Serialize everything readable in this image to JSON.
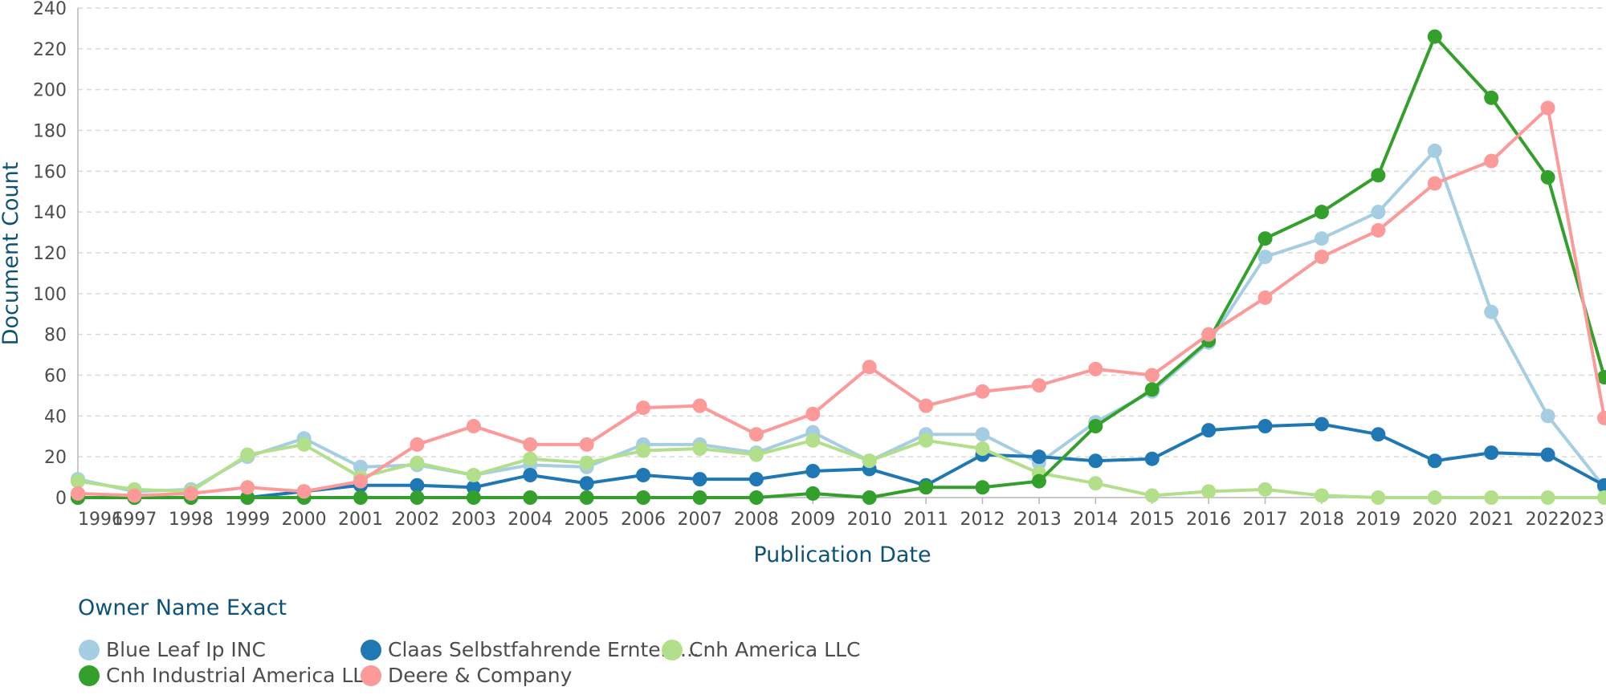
{
  "chart_data": {
    "type": "line",
    "xlabel": "Publication Date",
    "ylabel": "Document Count",
    "ylim": [
      0,
      240
    ],
    "yticks": [
      0,
      20,
      40,
      60,
      80,
      100,
      120,
      140,
      160,
      180,
      200,
      220,
      240
    ],
    "x": [
      "1996",
      "1997",
      "1998",
      "1999",
      "2000",
      "2001",
      "2002",
      "2003",
      "2004",
      "2005",
      "2006",
      "2007",
      "2008",
      "2009",
      "2010",
      "2011",
      "2012",
      "2013",
      "2014",
      "2015",
      "2016",
      "2017",
      "2018",
      "2019",
      "2020",
      "2021",
      "2022",
      "2023"
    ],
    "grid": "horizontal dashed",
    "legend": {
      "title": "Owner Name Exact",
      "placement": "bottom-left"
    },
    "series": [
      {
        "name": "Blue Leaf Ip INC",
        "color": "#a6cee3",
        "values": [
          9,
          3,
          4,
          20,
          29,
          15,
          16,
          11,
          16,
          15,
          26,
          26,
          22,
          32,
          18,
          31,
          31,
          17,
          37,
          52,
          76,
          118,
          127,
          140,
          170,
          91,
          40,
          5
        ]
      },
      {
        "name": "Claas Selbstfahrende Erntem...",
        "color": "#1f78b4",
        "values": [
          0,
          0,
          0,
          0,
          3,
          6,
          6,
          5,
          11,
          7,
          11,
          9,
          9,
          13,
          14,
          6,
          21,
          20,
          18,
          19,
          33,
          35,
          36,
          31,
          18,
          22,
          21,
          6
        ]
      },
      {
        "name": "Cnh America LLC",
        "color": "#b2df8a",
        "values": [
          8,
          4,
          3,
          21,
          26,
          10,
          17,
          11,
          19,
          17,
          23,
          24,
          21,
          28,
          18,
          28,
          24,
          12,
          7,
          1,
          3,
          4,
          1,
          0,
          0,
          0,
          0,
          0
        ]
      },
      {
        "name": "Cnh Industrial America LLC",
        "color": "#33a02c",
        "values": [
          0,
          0,
          0,
          0,
          0,
          0,
          0,
          0,
          0,
          0,
          0,
          0,
          0,
          2,
          0,
          5,
          5,
          8,
          35,
          53,
          77,
          127,
          140,
          158,
          226,
          196,
          157,
          59
        ]
      },
      {
        "name": "Deere & Company",
        "color": "#fb9a99",
        "values": [
          2,
          1,
          2,
          5,
          3,
          8,
          26,
          35,
          26,
          26,
          44,
          45,
          31,
          41,
          64,
          45,
          52,
          55,
          63,
          60,
          80,
          98,
          118,
          131,
          154,
          165,
          191,
          39
        ]
      }
    ]
  }
}
